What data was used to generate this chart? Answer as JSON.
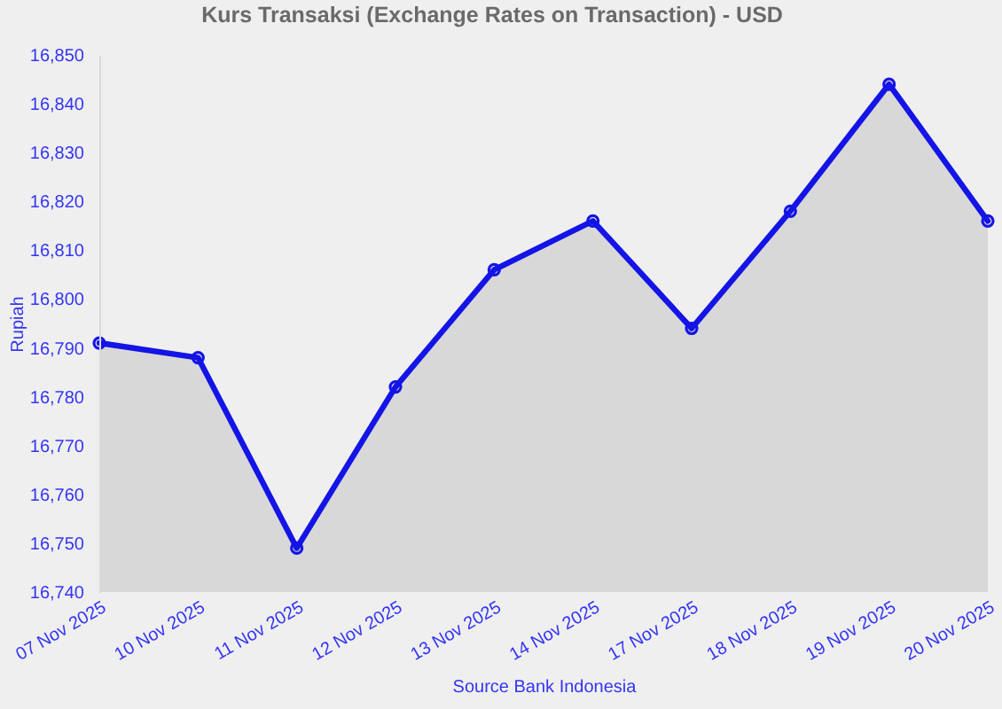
{
  "chart_data": {
    "type": "area",
    "title": "Kurs Transaksi (Exchange Rates on Transaction) - USD",
    "xlabel": "Source Bank Indonesia",
    "ylabel": "Rupiah",
    "categories": [
      "07 Nov 2025",
      "10 Nov 2025",
      "11 Nov 2025",
      "12 Nov 2025",
      "13 Nov 2025",
      "14 Nov 2025",
      "17 Nov 2025",
      "18 Nov 2025",
      "19 Nov 2025",
      "20 Nov 2025"
    ],
    "series": [
      {
        "color": "#1414e6",
        "values": [
          16791,
          16788,
          16749,
          16782,
          16806,
          16816,
          16794,
          16818,
          16844,
          16816
        ]
      }
    ],
    "ylim": [
      16740,
      16850
    ],
    "yticks": [
      {
        "value": 16740,
        "label": "16,740"
      },
      {
        "value": 16750,
        "label": "16,750"
      },
      {
        "value": 16760,
        "label": "16,760"
      },
      {
        "value": 16770,
        "label": "16,770"
      },
      {
        "value": 16780,
        "label": "16,780"
      },
      {
        "value": 16790,
        "label": "16,790"
      },
      {
        "value": 16800,
        "label": "16,800"
      },
      {
        "value": 16810,
        "label": "16,810"
      },
      {
        "value": 16820,
        "label": "16,820"
      },
      {
        "value": 16830,
        "label": "16,830"
      },
      {
        "value": 16840,
        "label": "16,840"
      },
      {
        "value": 16850,
        "label": "16,850"
      }
    ],
    "marker": "circle",
    "line_style": "solid"
  }
}
